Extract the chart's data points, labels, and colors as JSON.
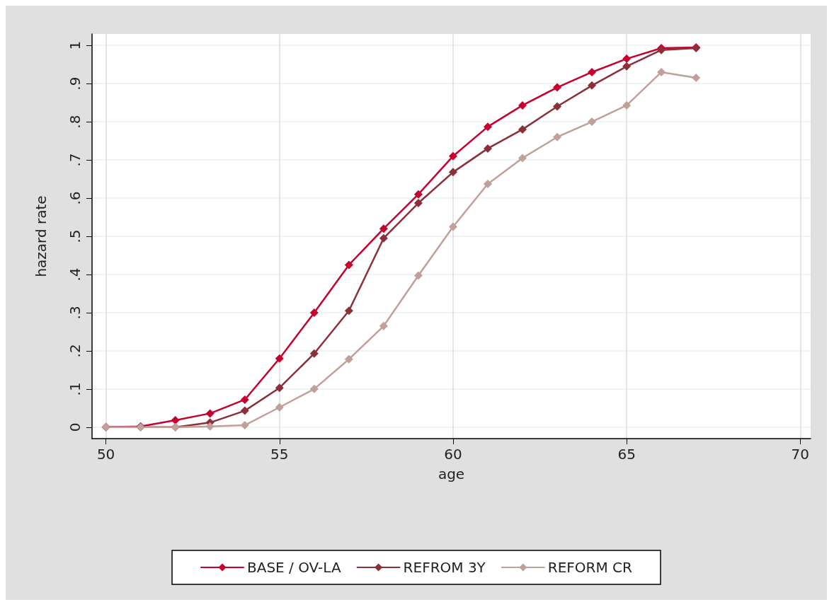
{
  "chart_data": {
    "type": "line",
    "xlabel": "age",
    "ylabel": "hazard rate",
    "x": [
      50,
      51,
      52,
      53,
      54,
      55,
      56,
      57,
      58,
      59,
      60,
      61,
      62,
      63,
      64,
      65,
      66,
      67
    ],
    "series": [
      {
        "name": "BASE / OV-LA",
        "color": "#c8002e",
        "values": [
          0,
          0.002,
          0.018,
          0.036,
          0.072,
          0.18,
          0.3,
          0.425,
          0.52,
          0.61,
          0.71,
          0.787,
          0.843,
          0.89,
          0.93,
          0.965,
          0.993,
          0.995
        ]
      },
      {
        "name": "REFROM 3Y",
        "color": "#8b3038",
        "values": [
          0,
          0,
          0,
          0.012,
          0.043,
          0.103,
          0.193,
          0.305,
          0.495,
          0.587,
          0.668,
          0.73,
          0.78,
          0.84,
          0.895,
          0.945,
          0.988,
          0.993
        ]
      },
      {
        "name": "REFORM CR",
        "color": "#c0a098",
        "values": [
          0,
          0,
          0,
          0.002,
          0.005,
          0.052,
          0.1,
          0.178,
          0.265,
          0.397,
          0.525,
          0.637,
          0.705,
          0.76,
          0.8,
          0.843,
          0.93,
          0.915
        ]
      }
    ],
    "xlim": [
      49.6,
      70.3
    ],
    "xticks": [
      50,
      55,
      60,
      65,
      70
    ],
    "ylim": [
      -0.03,
      1.03
    ],
    "yticks": [
      {
        "value": 0,
        "label": "0"
      },
      {
        "value": 0.1,
        "label": ".1"
      },
      {
        "value": 0.2,
        "label": ".2"
      },
      {
        "value": 0.3,
        "label": ".3"
      },
      {
        "value": 0.4,
        "label": ".4"
      },
      {
        "value": 0.5,
        "label": ".5"
      },
      {
        "value": 0.6,
        "label": ".6"
      },
      {
        "value": 0.7,
        "label": ".7"
      },
      {
        "value": 0.8,
        "label": ".8"
      },
      {
        "value": 0.9,
        "label": ".9"
      },
      {
        "value": 1,
        "label": "1"
      }
    ],
    "grid": true,
    "legend": "bottom",
    "marker": "diamond",
    "line_style": "solid"
  }
}
